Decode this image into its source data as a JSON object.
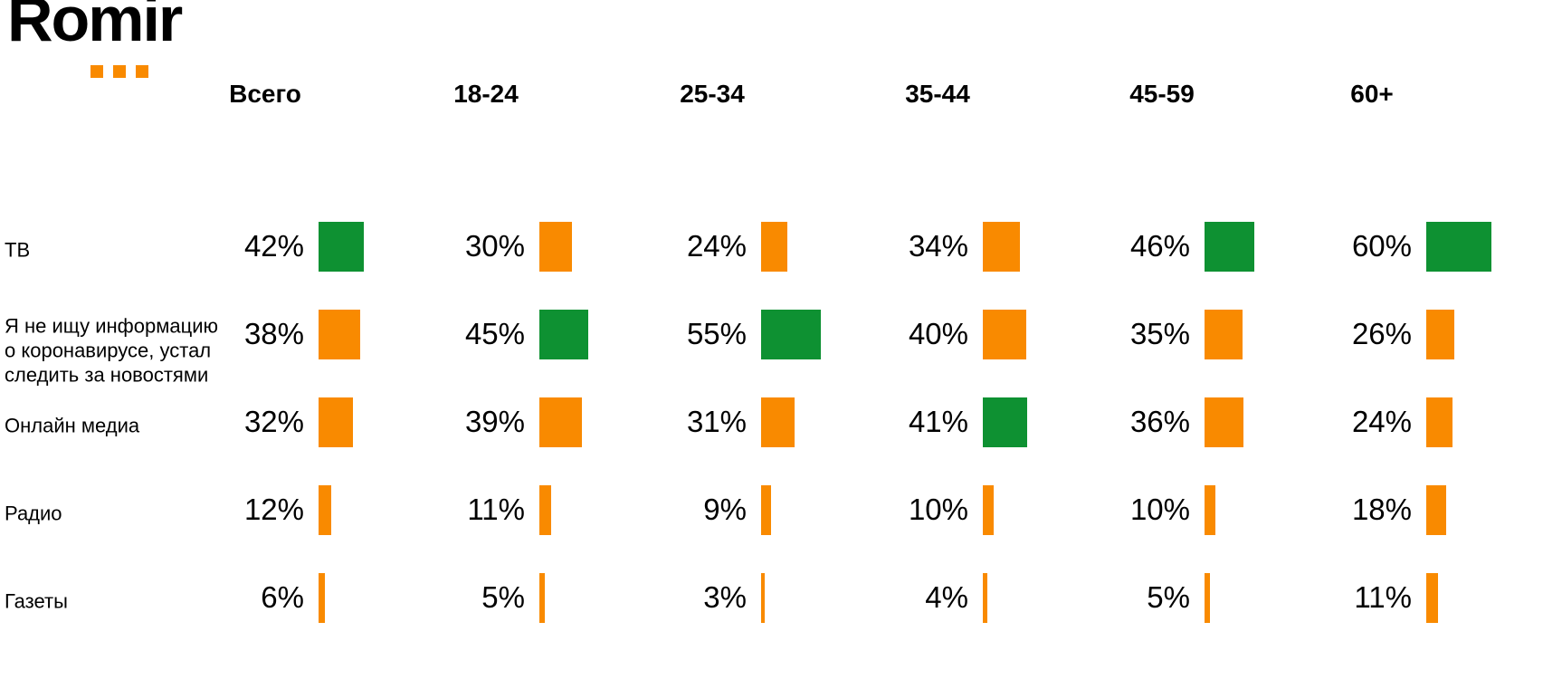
{
  "brand": {
    "logo_text": "Romir",
    "logo_color": "#000000",
    "dot_color": "#F98A00",
    "dot_count": 3
  },
  "chart_data": {
    "type": "bar",
    "title": "",
    "unit": "%",
    "orientation": "horizontal bar per table cell, width proportional to value",
    "legend_position": "none",
    "grid": false,
    "categories": [
      "Всего",
      "18-24",
      "25-34",
      "35-44",
      "45-59",
      "60+"
    ],
    "series": [
      {
        "name": "ТВ",
        "values": [
          42,
          30,
          24,
          34,
          46,
          60
        ]
      },
      {
        "name": "Я не ищу информацию о коронавирусе, устал следить за новостями",
        "values": [
          38,
          45,
          55,
          40,
          35,
          26
        ]
      },
      {
        "name": "Онлайн медиа",
        "values": [
          32,
          39,
          31,
          41,
          36,
          24
        ]
      },
      {
        "name": "Радио",
        "values": [
          12,
          11,
          9,
          10,
          10,
          18
        ]
      },
      {
        "name": "Газеты",
        "values": [
          6,
          5,
          3,
          4,
          5,
          11
        ]
      }
    ],
    "row_label_lines": [
      [
        "ТВ"
      ],
      [
        "Я не ищу информацию",
        "о коронавирусе, устал",
        "следить за новостями"
      ],
      [
        "Онлайн медиа"
      ],
      [
        "Радио"
      ],
      [
        "Газеты"
      ]
    ],
    "value_suffix": "%",
    "highlight_rule": "maximum value in each age column is shown in green",
    "colors": {
      "bar_default": "#F98A00",
      "bar_column_max": "#0E9132",
      "text": "#000000"
    }
  }
}
